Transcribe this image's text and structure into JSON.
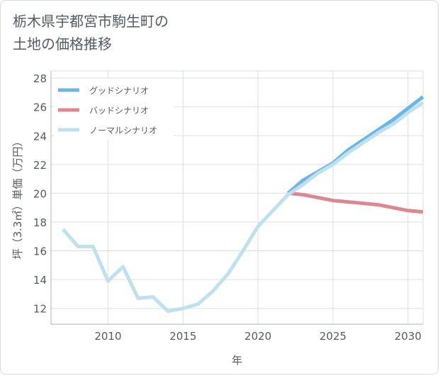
{
  "title_line1": "栃木県宇都宮市駒生町の",
  "title_line2": "土地の価格推移",
  "chart_data": {
    "type": "line",
    "title": "栃木県宇都宮市駒生町の土地の価格推移",
    "xlabel": "年",
    "ylabel": "坪（3.3㎡）単価（万円）",
    "xlim": [
      2006.2,
      2031
    ],
    "ylim": [
      10.9,
      28.5
    ],
    "xticks": [
      2010,
      2015,
      2020,
      2025,
      2030
    ],
    "yticks": [
      12,
      14,
      16,
      18,
      20,
      22,
      24,
      26,
      28
    ],
    "legend_position": "top-left",
    "series": [
      {
        "name": "グッドシナリオ",
        "color": "#6cb6e6",
        "x": [
          2022,
          2023,
          2024,
          2025,
          2026,
          2027,
          2028,
          2029,
          2030,
          2031
        ],
        "y": [
          20.0,
          20.9,
          21.5,
          22.1,
          23.0,
          23.7,
          24.4,
          25.1,
          25.9,
          26.7
        ]
      },
      {
        "name": "バッドシナリオ",
        "color": "#dd8890",
        "x": [
          2022,
          2023,
          2024,
          2025,
          2026,
          2027,
          2028,
          2029,
          2030,
          2031
        ],
        "y": [
          20.0,
          19.9,
          19.7,
          19.5,
          19.4,
          19.3,
          19.2,
          19.0,
          18.8,
          18.7
        ]
      },
      {
        "name": "ノーマルシナリオ",
        "color": "#bfe0ee",
        "x": [
          2007,
          2008,
          2009,
          2010,
          2011,
          2012,
          2013,
          2014,
          2015,
          2016,
          2017,
          2018,
          2019,
          2020,
          2021,
          2022,
          2023,
          2024,
          2025,
          2026,
          2027,
          2028,
          2029,
          2030,
          2031
        ],
        "y": [
          17.5,
          16.3,
          16.3,
          13.9,
          14.9,
          12.7,
          12.8,
          11.8,
          12.0,
          12.3,
          13.2,
          14.4,
          16.0,
          17.7,
          18.8,
          19.9,
          20.6,
          21.4,
          22.0,
          22.8,
          23.5,
          24.2,
          24.8,
          25.6,
          26.3
        ]
      }
    ]
  }
}
